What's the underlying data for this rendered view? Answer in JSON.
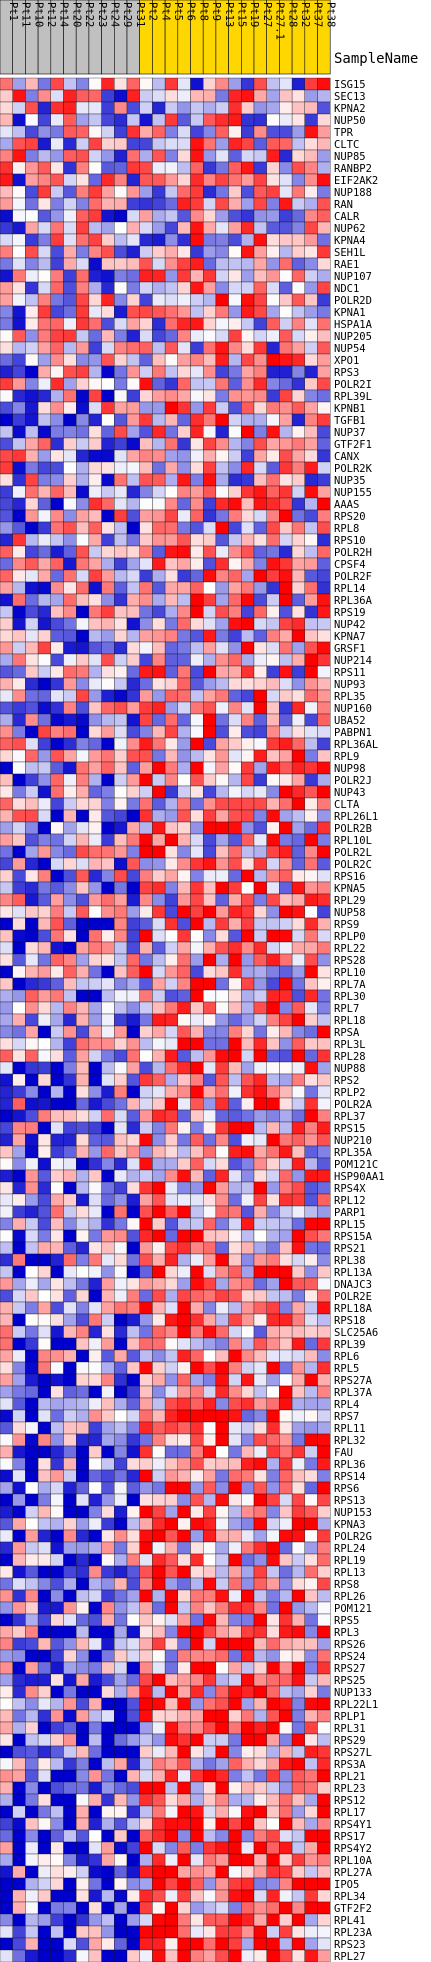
{
  "chart_data": {
    "type": "heatmap",
    "header_label": "SampleName",
    "columns": [
      {
        "name": "Pt1",
        "group": "A"
      },
      {
        "name": "Pt11",
        "group": "A"
      },
      {
        "name": "Pt10",
        "group": "A"
      },
      {
        "name": "Pt12",
        "group": "A"
      },
      {
        "name": "Pt14",
        "group": "A"
      },
      {
        "name": "Pt20",
        "group": "A"
      },
      {
        "name": "Pt22",
        "group": "A"
      },
      {
        "name": "Pt23",
        "group": "A"
      },
      {
        "name": "Pt24",
        "group": "A"
      },
      {
        "name": "Pt29",
        "group": "A"
      },
      {
        "name": "Pt31",
        "group": "A"
      },
      {
        "name": "Pt2",
        "group": "B"
      },
      {
        "name": "Pt4",
        "group": "B"
      },
      {
        "name": "Pt5",
        "group": "B"
      },
      {
        "name": "Pt6",
        "group": "B"
      },
      {
        "name": "Pt8",
        "group": "B"
      },
      {
        "name": "Pt9",
        "group": "B"
      },
      {
        "name": "Pt13",
        "group": "B"
      },
      {
        "name": "Pt15",
        "group": "B"
      },
      {
        "name": "Pt19",
        "group": "B"
      },
      {
        "name": "Pt27",
        "group": "B"
      },
      {
        "name": "Pt27.1",
        "group": "B"
      },
      {
        "name": "Pt28",
        "group": "B"
      },
      {
        "name": "Pt32",
        "group": "B"
      },
      {
        "name": "Pt37",
        "group": "B"
      },
      {
        "name": "Pt38",
        "group": "B"
      }
    ],
    "group_colors": {
      "A": "#c0c0c0",
      "B": "#ffd700"
    },
    "rows": [
      "ISG15",
      "SEC13",
      "KPNA2",
      "NUP50",
      "TPR",
      "CLTC",
      "NUP85",
      "RANBP2",
      "EIF2AK2",
      "NUP188",
      "RAN",
      "CALR",
      "NUP62",
      "KPNA4",
      "SEH1L",
      "RAE1",
      "NUP107",
      "NDC1",
      "POLR2D",
      "KPNA1",
      "HSPA1A",
      "NUP205",
      "NUP54",
      "XPO1",
      "RPS3",
      "POLR2I",
      "RPL39L",
      "KPNB1",
      "TGFB1",
      "NUP37",
      "GTF2F1",
      "CANX",
      "POLR2K",
      "NUP35",
      "NUP155",
      "AAAS",
      "RPS20",
      "RPL8",
      "RPS10",
      "POLR2H",
      "CPSF4",
      "POLR2F",
      "RPL14",
      "RPL36A",
      "RPS19",
      "NUP42",
      "KPNA7",
      "GRSF1",
      "NUP214",
      "RPS11",
      "NUP93",
      "RPL35",
      "NUP160",
      "UBA52",
      "PABPN1",
      "RPL36AL",
      "RPL9",
      "NUP98",
      "POLR2J",
      "NUP43",
      "CLTA",
      "RPL26L1",
      "POLR2B",
      "RPL10L",
      "POLR2L",
      "POLR2C",
      "RPS16",
      "KPNA5",
      "RPL29",
      "NUP58",
      "RPS9",
      "RPLP0",
      "RPL22",
      "RPS28",
      "RPL10",
      "RPL7A",
      "RPL30",
      "RPL7",
      "RPL18",
      "RPSA",
      "RPL3L",
      "RPL28",
      "NUP88",
      "RPS2",
      "RPLP2",
      "POLR2A",
      "RPL37",
      "RPS15",
      "NUP210",
      "RPL35A",
      "POM121C",
      "HSP90AA1",
      "RPS4X",
      "RPL12",
      "PARP1",
      "RPL15",
      "RPS15A",
      "RPS21",
      "RPL38",
      "RPL13A",
      "DNAJC3",
      "POLR2E",
      "RPL18A",
      "RPS18",
      "SLC25A6",
      "RPL39",
      "RPL6",
      "RPL5",
      "RPS27A",
      "RPL37A",
      "RPL4",
      "RPS7",
      "RPL11",
      "RPL32",
      "FAU",
      "RPL36",
      "RPS14",
      "RPS6",
      "RPS13",
      "NUP153",
      "KPNA3",
      "POLR2G",
      "RPL24",
      "RPL19",
      "RPL13",
      "RPS8",
      "RPL26",
      "POM121",
      "RPS5",
      "RPL3",
      "RPS26",
      "RPS24",
      "RPS27",
      "RPS25",
      "NUP133",
      "RPL22L1",
      "RPLP1",
      "RPL31",
      "RPS29",
      "RPS27L",
      "RPS3A",
      "RPL21",
      "RPL23",
      "RPS12",
      "RPL17",
      "RPS4Y1",
      "RPS17",
      "RPS4Y2",
      "RPL10A",
      "RPL27A",
      "IPO5",
      "RPL34",
      "GTF2F2",
      "RPL41",
      "RPL23A",
      "RPS23",
      "RPL27"
    ],
    "color_scale": {
      "low": "#0000cc",
      "mid": "#ffffff",
      "high": "#ff0000",
      "domain": [
        -1,
        1
      ]
    },
    "seed": 9173
  }
}
